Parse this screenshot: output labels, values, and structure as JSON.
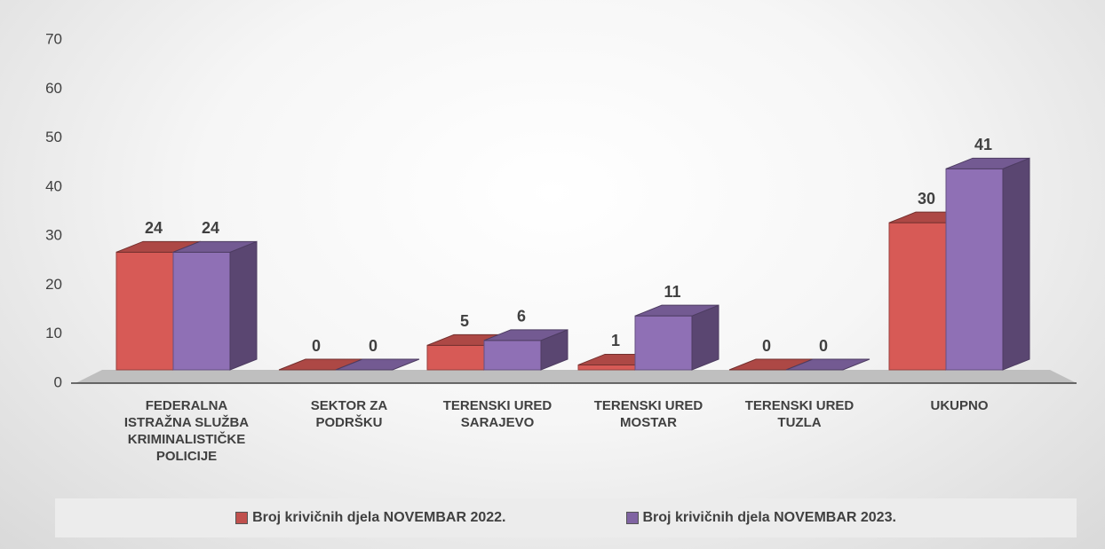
{
  "chart_data": {
    "type": "bar3d",
    "categories": [
      "FEDERALNA ISTRAŽNA SLUŽBA KRIMINALISTIČKE POLICIJE",
      "SEKTOR ZA PODRŠKU",
      "TERENSKI URED SARAJEVO",
      "TERENSKI URED MOSTAR",
      "TERENSKI URED TUZLA",
      "UKUPNO"
    ],
    "series": [
      {
        "name": "Broj krivičnih djela NOVEMBAR 2022.",
        "color": "#c0504d",
        "values": [
          24,
          0,
          5,
          1,
          0,
          30
        ]
      },
      {
        "name": "Broj krivičnih djela NOVEMBAR  2023.",
        "color": "#8064a2",
        "values": [
          24,
          0,
          6,
          11,
          0,
          41
        ]
      }
    ],
    "ylim": [
      0,
      70
    ],
    "yticks": [
      0,
      10,
      20,
      30,
      40,
      50,
      60,
      70
    ],
    "legend": "bottom"
  }
}
